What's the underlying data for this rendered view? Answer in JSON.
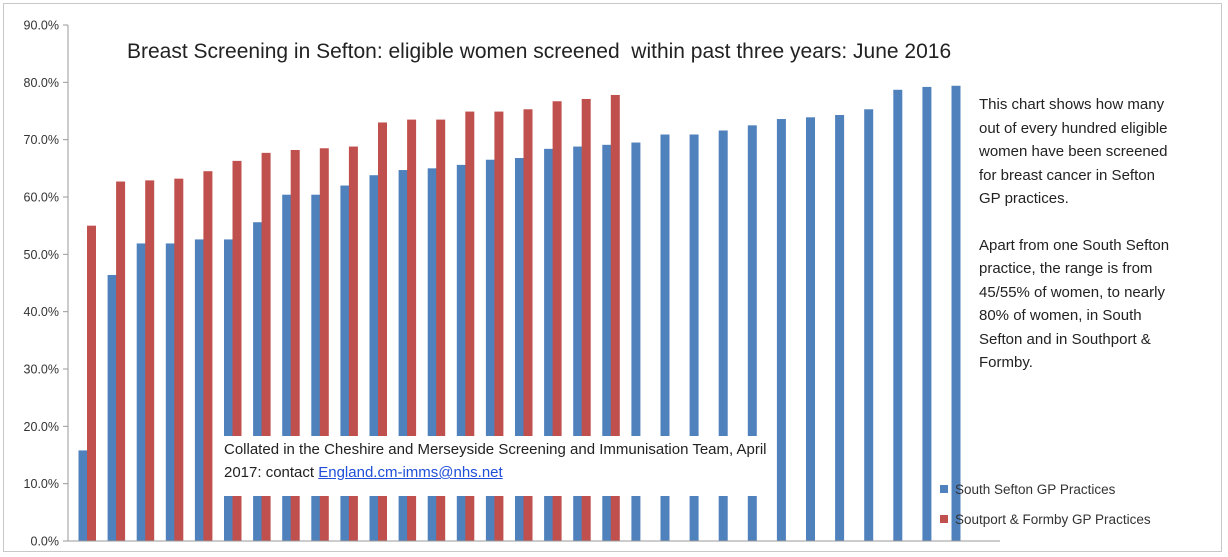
{
  "colors": {
    "south": "#4f81bd",
    "southport": "#c0504d",
    "axis": "#999999"
  },
  "chart_data": {
    "type": "bar",
    "title": "Breast Screening in Sefton: eligible women screened  within past three years: June 2016",
    "xlabel": "",
    "ylabel": "",
    "ylim": [
      0,
      90
    ],
    "y_ticks": [
      "0.0%",
      "10.0%",
      "20.0%",
      "30.0%",
      "40.0%",
      "50.0%",
      "60.0%",
      "70.0%",
      "80.0%",
      "90.0%"
    ],
    "grid": false,
    "legend_position": "bottom-right",
    "series": [
      {
        "name": "South Sefton GP Practices",
        "color": "#4f81bd",
        "values": [
          15.8,
          46.4,
          51.9,
          51.9,
          52.6,
          52.6,
          55.6,
          60.4,
          60.4,
          62.0,
          63.8,
          64.7,
          65.0,
          65.6,
          66.5,
          66.8,
          68.4,
          68.8,
          69.1,
          69.5,
          70.9,
          70.9,
          71.6,
          72.5,
          73.6,
          73.9,
          74.3,
          75.3,
          78.7,
          79.2,
          79.4
        ]
      },
      {
        "name": "Soutport & Formby GP Practices",
        "color": "#c0504d",
        "values": [
          55.0,
          62.7,
          62.9,
          63.2,
          64.5,
          66.3,
          67.7,
          68.2,
          68.5,
          68.8,
          73.0,
          73.5,
          73.5,
          74.9,
          74.9,
          75.3,
          76.7,
          77.1,
          77.8
        ]
      }
    ],
    "annotations": {
      "note_paragraphs": [
        "This chart shows  how many out of every hundred eligible women have been screened for breast cancer in Sefton GP practices.",
        "Apart from one  South Sefton practice, the range is from 45/55%  of women, to nearly 80% of women, in South Sefton and in Southport & Formby."
      ],
      "collated_text": "Collated in the Cheshire and Merseyside Screening and Immunisation Team, April 2017: contact ",
      "contact_link": "England.cm-imms@nhs.net"
    }
  }
}
